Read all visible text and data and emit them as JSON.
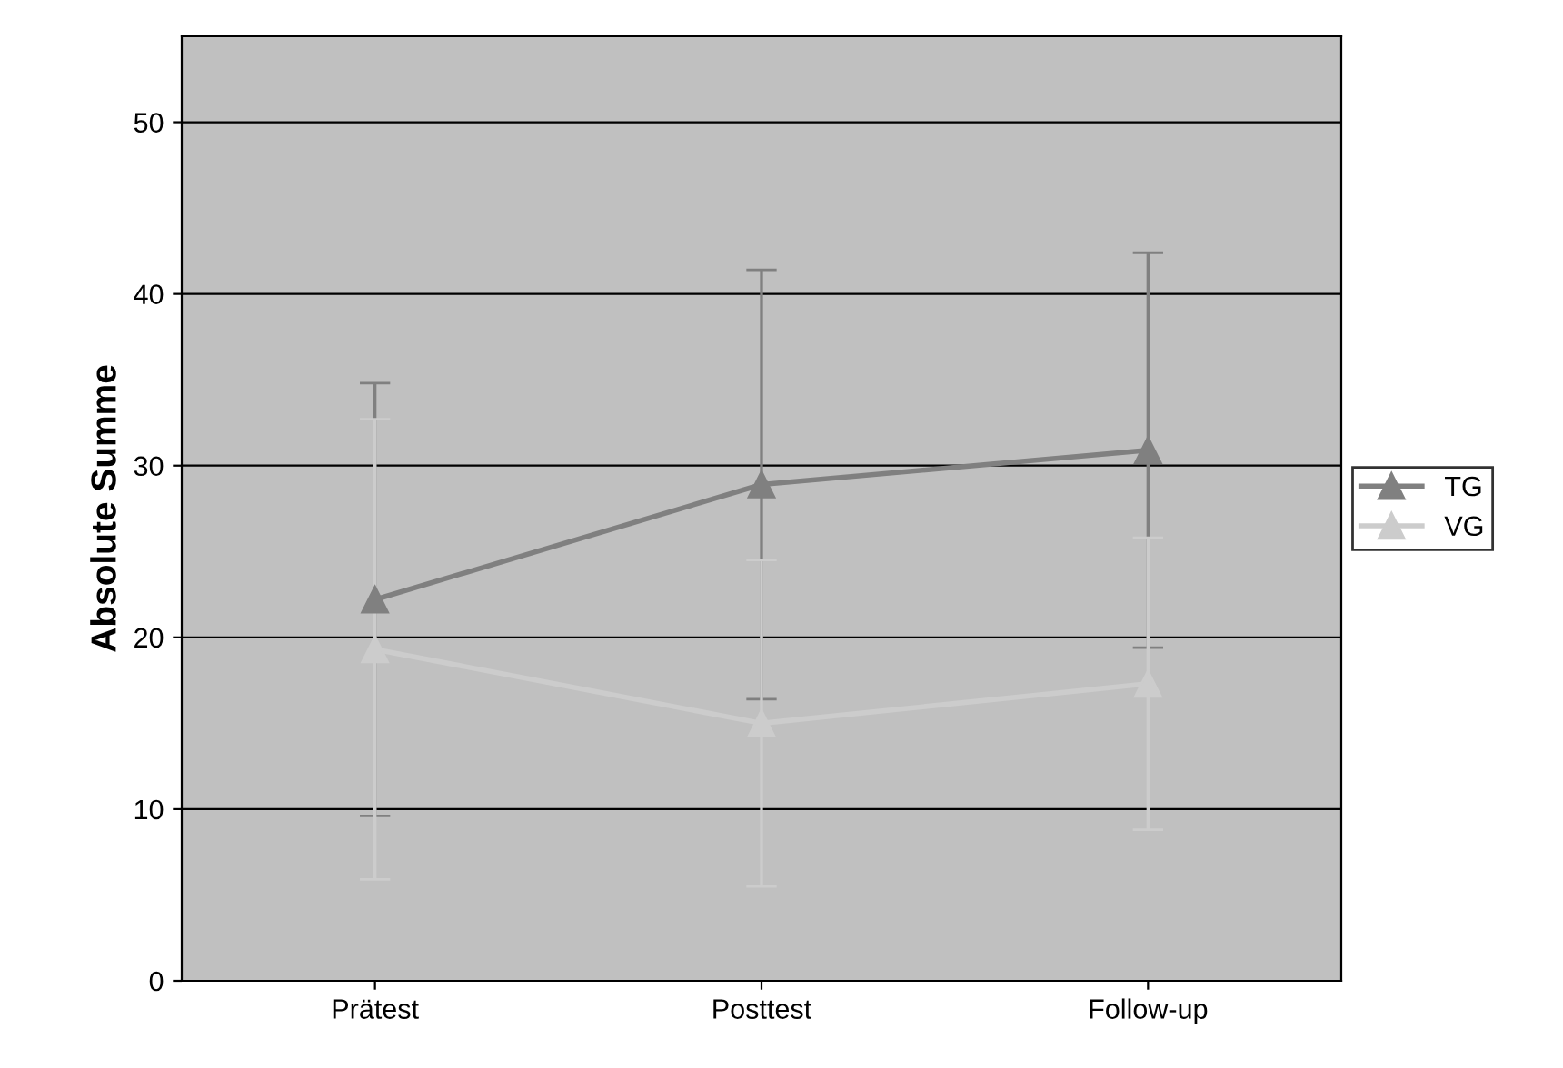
{
  "chart_data": {
    "type": "line",
    "ylabel": "Absolute Summe",
    "categories": [
      "Prätest",
      "Posttest",
      "Follow-up"
    ],
    "series": [
      {
        "name": "TG",
        "color": "#808080",
        "values": [
          22.2,
          28.9,
          30.9
        ],
        "errors": [
          12.6,
          12.5,
          11.5
        ]
      },
      {
        "name": "VG",
        "color": "#cccccc",
        "values": [
          19.3,
          15.0,
          17.3
        ],
        "errors": [
          13.4,
          9.5,
          8.5
        ]
      }
    ],
    "ylim": [
      0,
      55
    ],
    "yticks": [
      0,
      10,
      20,
      30,
      40,
      50
    ],
    "grid": "y",
    "legend": "right",
    "marker": "triangle",
    "line_style": "solid"
  }
}
